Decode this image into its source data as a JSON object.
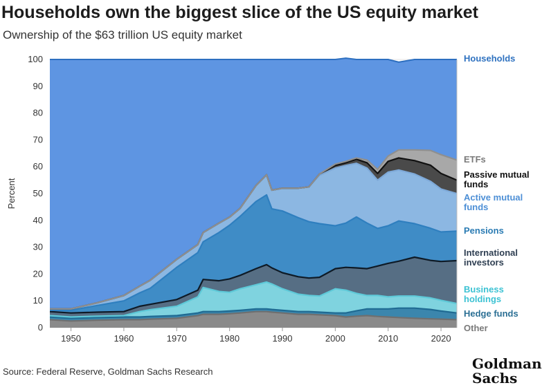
{
  "header": {
    "title": "Households own the biggest slice of the US equity market",
    "subtitle": "Ownership of the $63 trillion US equity market"
  },
  "footer": {
    "source": "Source: Federal Reserve, Goldman Sachs Research",
    "logo_line1": "Goldman",
    "logo_line2": "Sachs"
  },
  "chart_data": {
    "type": "area",
    "stacked": true,
    "title": "Households own the biggest slice of the US equity market",
    "subtitle": "Ownership of the $63 trillion US equity market",
    "ylabel": "Percent",
    "xlabel": "",
    "xlim": [
      1946,
      2023
    ],
    "ylim": [
      0,
      100
    ],
    "yticks": [
      0,
      10,
      20,
      30,
      40,
      50,
      60,
      70,
      80,
      90,
      100
    ],
    "xticks": [
      1950,
      1960,
      1970,
      1980,
      1990,
      2000,
      2010,
      2020
    ],
    "x": [
      1946,
      1950,
      1955,
      1960,
      1963,
      1965,
      1970,
      1974,
      1975,
      1978,
      1980,
      1982,
      1985,
      1987,
      1988,
      1990,
      1993,
      1995,
      1997,
      2000,
      2002,
      2004,
      2006,
      2008,
      2010,
      2012,
      2015,
      2018,
      2020,
      2023
    ],
    "series": [
      {
        "name": "Other",
        "color": "#8a8a8a",
        "values": [
          3.0,
          2.5,
          2.8,
          3.0,
          3.0,
          3.2,
          3.5,
          4.5,
          5.0,
          5.0,
          5.2,
          5.5,
          6.0,
          6.0,
          5.8,
          5.5,
          5.0,
          5.0,
          4.8,
          4.5,
          4.0,
          4.3,
          4.5,
          4.2,
          4.0,
          3.8,
          3.5,
          3.3,
          3.2,
          3.0
        ]
      },
      {
        "name": "Hedge funds",
        "color": "#3b86ad",
        "values": [
          1.0,
          1.0,
          1.0,
          1.0,
          1.0,
          1.0,
          1.0,
          1.0,
          1.0,
          1.0,
          1.0,
          1.0,
          1.0,
          1.0,
          1.0,
          1.0,
          1.0,
          1.0,
          1.0,
          1.0,
          1.5,
          2.0,
          2.5,
          2.8,
          3.0,
          3.5,
          3.8,
          3.5,
          3.0,
          2.5
        ]
      },
      {
        "name": "Business holdings",
        "color": "#7fd3df",
        "values": [
          0.5,
          0.5,
          0.5,
          0.5,
          2.0,
          2.5,
          3.5,
          6.0,
          9.0,
          7.5,
          7.0,
          8.0,
          9.0,
          10.0,
          9.5,
          8.0,
          6.5,
          6.0,
          6.0,
          9.0,
          8.5,
          6.5,
          5.0,
          5.0,
          4.5,
          4.5,
          4.5,
          4.3,
          4.0,
          3.5
        ]
      },
      {
        "name": "International investors",
        "color": "#566e84",
        "values": [
          1.5,
          1.5,
          1.5,
          1.5,
          2.0,
          2.0,
          2.5,
          2.5,
          3.0,
          4.0,
          5.0,
          5.0,
          6.0,
          6.5,
          6.0,
          6.0,
          6.5,
          6.5,
          7.0,
          7.5,
          8.5,
          9.5,
          10.0,
          11.0,
          12.5,
          13.0,
          14.5,
          14.0,
          14.5,
          16.0
        ]
      },
      {
        "name": "Pensions",
        "color": "#3f8cc6",
        "values": [
          0.5,
          1.0,
          2.5,
          4.0,
          5.0,
          6.0,
          12.0,
          14.0,
          14.0,
          18.0,
          20.0,
          22.0,
          25.0,
          26.0,
          22.0,
          23.0,
          22.0,
          21.0,
          20.0,
          16.0,
          16.5,
          19.0,
          17.0,
          14.0,
          14.0,
          15.0,
          12.5,
          12.0,
          11.0,
          11.0
        ]
      },
      {
        "name": "Active mutual funds",
        "color": "#8cb7e2",
        "values": [
          0.5,
          0.5,
          1.0,
          2.0,
          2.5,
          3.0,
          3.0,
          3.0,
          3.5,
          3.5,
          3.0,
          3.0,
          6.0,
          7.5,
          7.0,
          8.5,
          11.0,
          13.0,
          18.0,
          21.5,
          21.5,
          20.0,
          20.5,
          18.0,
          20.0,
          19.0,
          18.5,
          17.5,
          16.0,
          14.0
        ]
      },
      {
        "name": "Passive mutual funds",
        "color": "#4a4a4a",
        "values": [
          0,
          0,
          0,
          0,
          0,
          0,
          0,
          0,
          0,
          0,
          0,
          0,
          0,
          0,
          0,
          0,
          0,
          0,
          0.5,
          1.0,
          1.0,
          1.5,
          2.0,
          2.5,
          4.0,
          4.5,
          5.0,
          6.0,
          5.8,
          5.0
        ]
      },
      {
        "name": "ETFs",
        "color": "#a8a8a8",
        "values": [
          0,
          0,
          0,
          0,
          0,
          0,
          0,
          0,
          0,
          0,
          0,
          0,
          0,
          0,
          0,
          0,
          0,
          0,
          0,
          0.5,
          0.5,
          0.5,
          1.0,
          1.5,
          2.0,
          3.0,
          4.0,
          5.5,
          7.0,
          7.5
        ]
      },
      {
        "name": "Households",
        "color": "#5e95e2",
        "values": [
          93.0,
          93.0,
          90.7,
          88.0,
          84.5,
          82.3,
          74.5,
          69.0,
          64.5,
          61.0,
          58.8,
          55.5,
          47.0,
          43.0,
          48.7,
          48.0,
          48.0,
          47.5,
          42.7,
          39.0,
          38.5,
          36.7,
          37.5,
          41.0,
          36.0,
          32.7,
          33.7,
          33.9,
          35.5,
          37.5
        ]
      }
    ]
  },
  "labels": {
    "households": "Households",
    "etfs": "ETFs",
    "passive_line1": "Passive mutual",
    "passive_line2": "funds",
    "active_line1": "Active mutual",
    "active_line2": "funds",
    "pensions": "Pensions",
    "international_line1": "International",
    "international_line2": "investors",
    "business_line1": "Business",
    "business_line2": "holdings",
    "hedge": "Hedge funds",
    "other": "Other"
  },
  "label_colors": {
    "households": "#2f72c0",
    "etfs": "#7a7a7a",
    "passive": "#111111",
    "active": "#4d8fd6",
    "pensions": "#2a7bb3",
    "international": "#2f3f52",
    "business": "#3cc2d3",
    "hedge": "#2b6f94",
    "other": "#7a7a7a"
  }
}
